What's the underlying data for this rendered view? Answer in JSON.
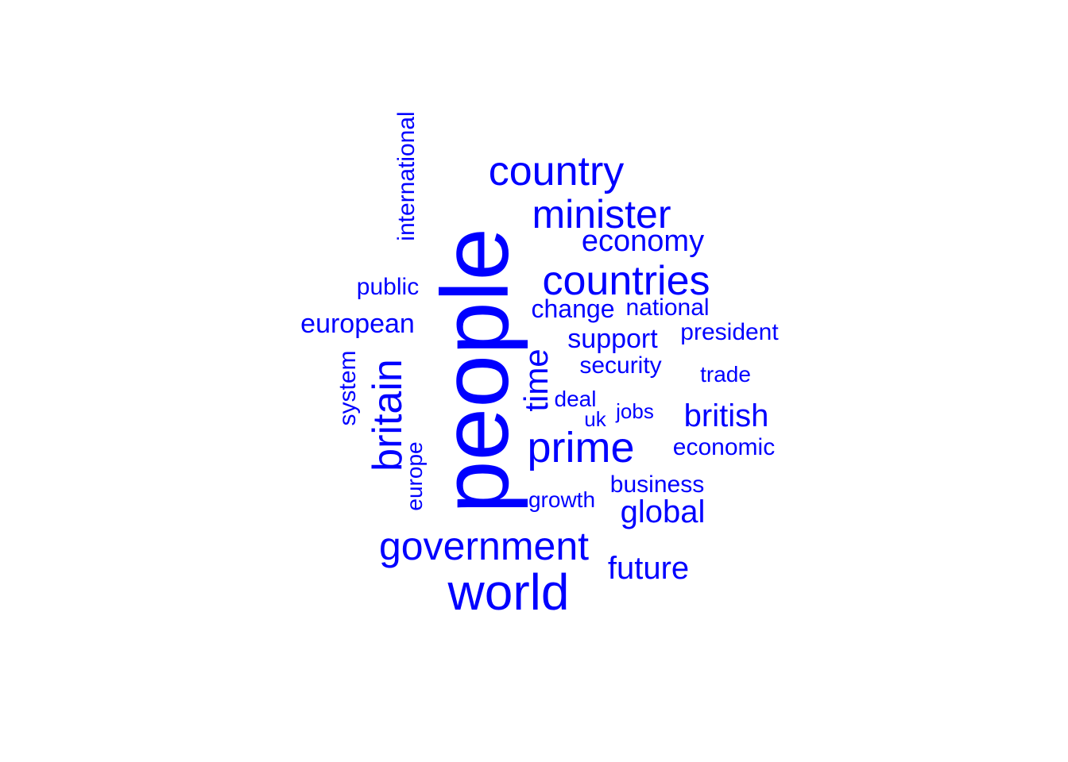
{
  "word_color": "#0000ff",
  "words": [
    {
      "key": "people",
      "text": "people"
    },
    {
      "key": "world",
      "text": "world"
    },
    {
      "key": "country",
      "text": "country"
    },
    {
      "key": "minister",
      "text": "minister"
    },
    {
      "key": "countries",
      "text": "countries"
    },
    {
      "key": "government",
      "text": "government"
    },
    {
      "key": "prime",
      "text": "prime"
    },
    {
      "key": "britain",
      "text": "britain"
    },
    {
      "key": "economy",
      "text": "economy"
    },
    {
      "key": "time",
      "text": "time"
    },
    {
      "key": "international",
      "text": "international"
    },
    {
      "key": "european",
      "text": "european"
    },
    {
      "key": "global",
      "text": "global"
    },
    {
      "key": "future",
      "text": "future"
    },
    {
      "key": "british",
      "text": "british"
    },
    {
      "key": "support",
      "text": "support"
    },
    {
      "key": "change",
      "text": "change"
    },
    {
      "key": "public",
      "text": "public"
    },
    {
      "key": "national",
      "text": "national"
    },
    {
      "key": "president",
      "text": "president"
    },
    {
      "key": "security",
      "text": "security"
    },
    {
      "key": "system",
      "text": "system"
    },
    {
      "key": "economic",
      "text": "economic"
    },
    {
      "key": "business",
      "text": "business"
    },
    {
      "key": "europe",
      "text": "europe"
    },
    {
      "key": "trade",
      "text": "trade"
    },
    {
      "key": "deal",
      "text": "deal"
    },
    {
      "key": "growth",
      "text": "growth"
    },
    {
      "key": "jobs",
      "text": "jobs"
    },
    {
      "key": "uk",
      "text": "uk"
    }
  ]
}
